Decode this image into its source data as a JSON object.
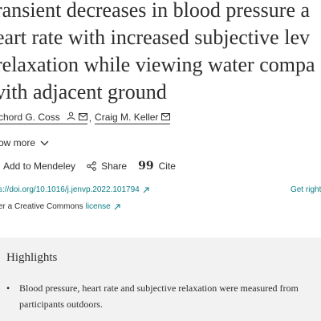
{
  "article": {
    "title_lines": [
      "ransient decreases in blood pressure a",
      "eart rate with increased subjective lev",
      "relaxation while viewing water compa",
      "vith adjacent ground"
    ],
    "authors": [
      {
        "name": "chord G. Coss",
        "icons": [
          "person-icon",
          "mail-icon"
        ]
      },
      {
        "name": "Craig M. Keller",
        "icons": [
          "mail-icon"
        ]
      }
    ],
    "author_separator": ",",
    "show_more": "ow more",
    "toolbar": {
      "mendeley": "Add to Mendeley",
      "share": "Share",
      "cite": "Cite"
    },
    "doi_link": "s://doi.org/10.1016/j.jenvp.2022.101794",
    "rights_link": "Get right",
    "license_text": "er a Creative Commons",
    "license_link": "license"
  },
  "highlights": {
    "heading": "Highlights",
    "items": [
      "Blood pressure, heart rate and subjective relaxation were measured from participants outdoors."
    ]
  },
  "colors": {
    "link": "#0c7d85",
    "text": "#2e2e2e",
    "highlights_bg": "#f2f2f2"
  }
}
